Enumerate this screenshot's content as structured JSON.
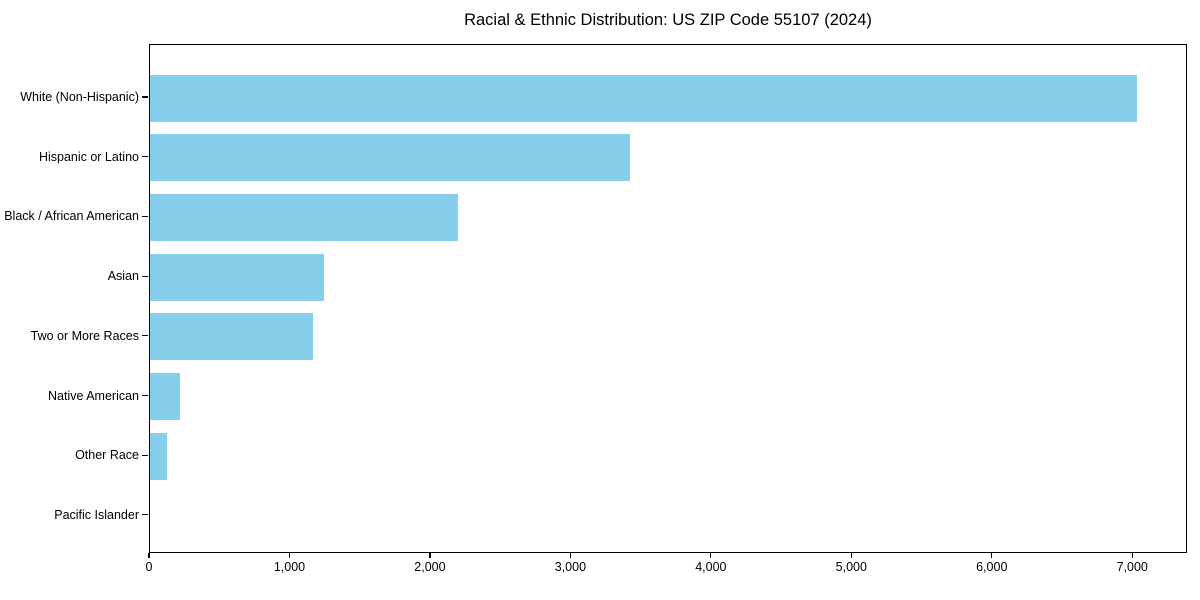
{
  "chart_data": {
    "type": "bar",
    "orientation": "horizontal",
    "title": "Racial & Ethnic Distribution: US ZIP Code 55107 (2024)",
    "categories": [
      "White (Non-Hispanic)",
      "Hispanic or Latino",
      "Black / African American",
      "Asian",
      "Two or More Races",
      "Native American",
      "Other Race",
      "Pacific Islander"
    ],
    "values": [
      7030,
      3420,
      2190,
      1240,
      1160,
      215,
      120,
      0
    ],
    "xlabel": "",
    "ylabel": "",
    "xlim": [
      0,
      7390
    ],
    "xticks": [
      {
        "value": 0,
        "label": "0"
      },
      {
        "value": 1000,
        "label": "1,000"
      },
      {
        "value": 2000,
        "label": "2,000"
      },
      {
        "value": 3000,
        "label": "3,000"
      },
      {
        "value": 4000,
        "label": "4,000"
      },
      {
        "value": 5000,
        "label": "5,000"
      },
      {
        "value": 6000,
        "label": "6,000"
      },
      {
        "value": 7000,
        "label": "7,000"
      }
    ],
    "grid": false,
    "legend": "none",
    "bar_color": "#87CEEB",
    "background_color": "#FFFFFF",
    "text_color": "#000000",
    "axis_color": "#000000"
  }
}
